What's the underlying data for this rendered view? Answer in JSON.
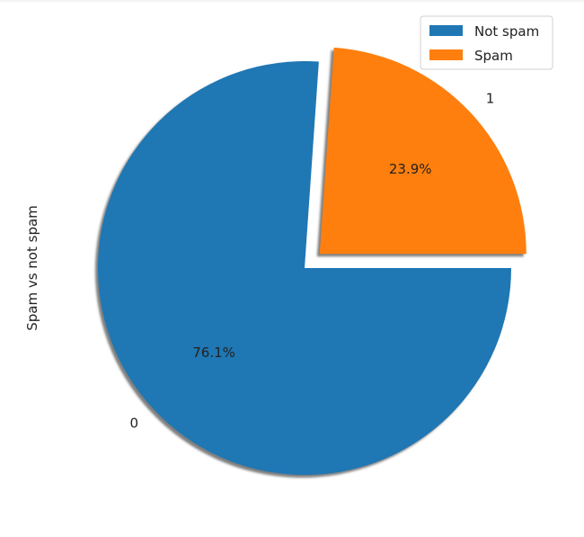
{
  "chart_data": {
    "type": "pie",
    "ylabel": "Spam vs not spam",
    "categories": [
      "0",
      "1"
    ],
    "values": [
      76.1,
      23.9
    ],
    "autopct": [
      "76.1%",
      "23.9%"
    ],
    "colors": [
      "#1f77b4",
      "#ff7f0e"
    ],
    "explode": [
      0,
      0.1
    ],
    "shadow": true,
    "legend": {
      "placement": "top-right",
      "entries": [
        "Not spam",
        "Spam"
      ]
    }
  }
}
